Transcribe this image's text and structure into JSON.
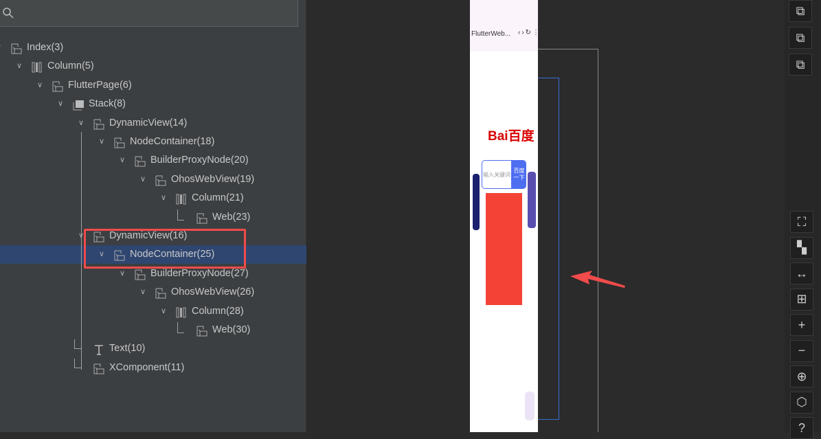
{
  "search": {
    "placeholder": "",
    "icon": "search-icon"
  },
  "tree": [
    {
      "label": "Index(3)",
      "level": 0,
      "icon": "component-icon",
      "expanded": true
    },
    {
      "label": "Column(5)",
      "level": 1,
      "icon": "column-icon",
      "expanded": true
    },
    {
      "label": "FlutterPage(6)",
      "level": 2,
      "icon": "component-icon",
      "expanded": true
    },
    {
      "label": "Stack(8)",
      "level": 3,
      "icon": "stack-icon",
      "expanded": true
    },
    {
      "label": "DynamicView(14)",
      "level": 4,
      "icon": "component-icon",
      "expanded": true
    },
    {
      "label": "NodeContainer(18)",
      "level": 5,
      "icon": "component-icon",
      "expanded": true
    },
    {
      "label": "BuilderProxyNode(20)",
      "level": 6,
      "icon": "component-icon",
      "expanded": true
    },
    {
      "label": "OhosWebView(19)",
      "level": 7,
      "icon": "component-icon",
      "expanded": true
    },
    {
      "label": "Column(21)",
      "level": 8,
      "icon": "column-icon",
      "expanded": true
    },
    {
      "label": "Web(23)",
      "level": 9,
      "icon": "component-icon",
      "leaf": true
    },
    {
      "label": "DynamicView(16)",
      "level": 4,
      "icon": "component-icon",
      "expanded": true
    },
    {
      "label": "NodeContainer(25)",
      "level": 5,
      "icon": "component-icon",
      "expanded": true,
      "selected": true
    },
    {
      "label": "BuilderProxyNode(27)",
      "level": 6,
      "icon": "component-icon",
      "expanded": true
    },
    {
      "label": "OhosWebView(26)",
      "level": 7,
      "icon": "component-icon",
      "expanded": true
    },
    {
      "label": "Column(28)",
      "level": 8,
      "icon": "column-icon",
      "expanded": true
    },
    {
      "label": "Web(30)",
      "level": 9,
      "icon": "component-icon",
      "leaf": true
    },
    {
      "label": "Text(10)",
      "level": 4,
      "icon": "text-icon",
      "leaf": true
    },
    {
      "label": "XComponent(11)",
      "level": 4,
      "icon": "component-icon",
      "leaf": true
    }
  ],
  "preview": {
    "app_title": "FlutterWeb...",
    "search_placeholder": "输入关键词",
    "search_button": "百度一下",
    "logo_text": "Bai百度"
  },
  "colors": {
    "highlight": "#f24b4b",
    "selection": "#2f4670",
    "redacted": "#f44336"
  },
  "toolbar_top": [
    "layers-back-icon",
    "layers-middle-icon",
    "layers-front-icon"
  ],
  "toolbar_bottom": [
    "fit-screen-icon",
    "layout-icon",
    "fit-width-icon",
    "select-region-icon",
    "zoom-in-icon",
    "zoom-out-icon",
    "locate-icon",
    "3d-view-icon",
    "help-icon"
  ]
}
